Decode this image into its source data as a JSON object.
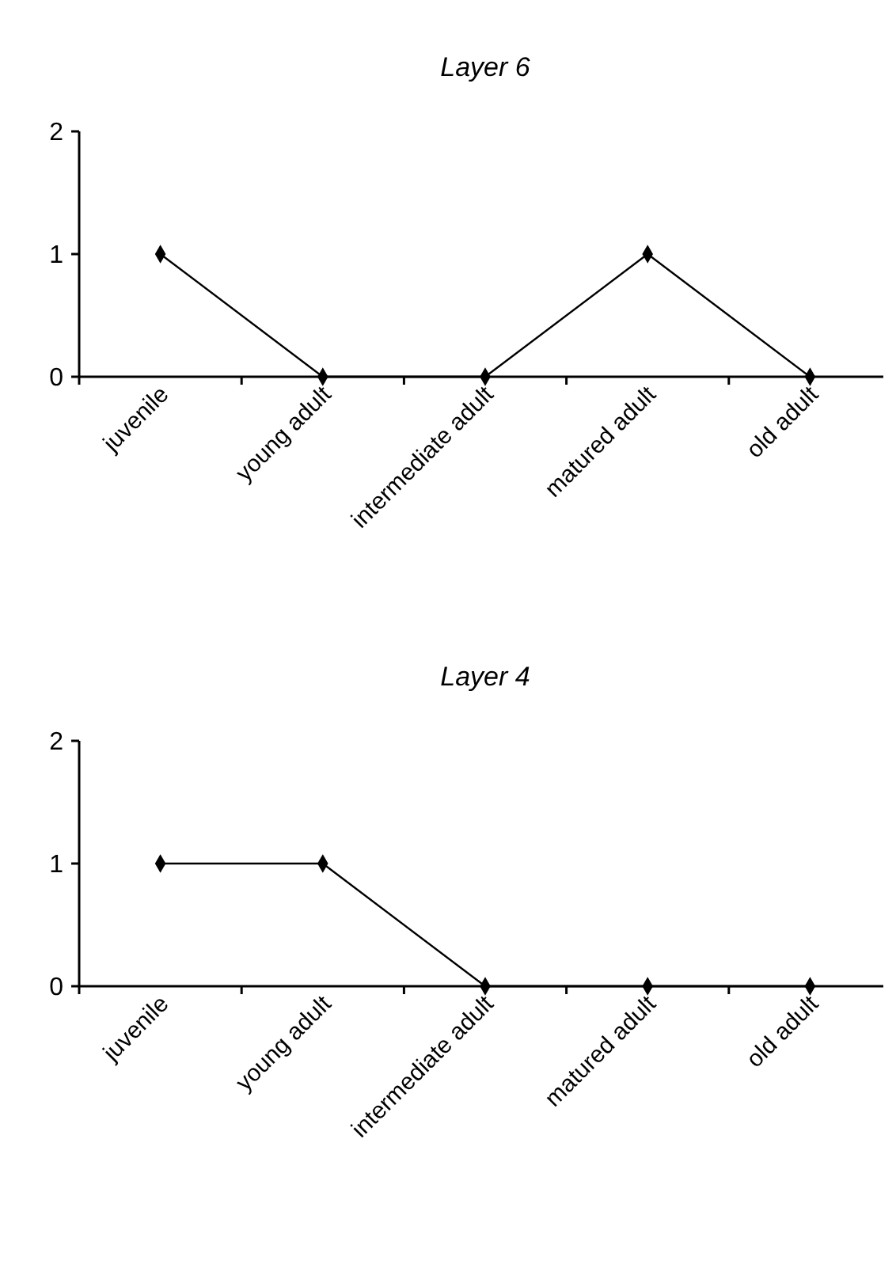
{
  "chart_data": [
    {
      "type": "line",
      "title": "Layer 6",
      "categories": [
        "juvenile",
        "young adult",
        "intermediate adult",
        "matured adult",
        "old adult"
      ],
      "values": [
        1,
        0,
        0,
        1,
        0
      ],
      "color": "#000000",
      "ylim": [
        0,
        2
      ],
      "yticks": [
        0,
        1,
        2
      ],
      "grid": false,
      "marker": "diamond",
      "line_style": "solid"
    },
    {
      "type": "line",
      "title": "Layer 4",
      "categories": [
        "juvenile",
        "young adult",
        "intermediate adult",
        "matured adult",
        "old adult"
      ],
      "values": [
        1,
        1,
        0,
        0,
        0
      ],
      "color": "#000000",
      "ylim": [
        0,
        2
      ],
      "yticks": [
        0,
        1,
        2
      ],
      "grid": false,
      "marker": "diamond",
      "line_style": "solid"
    }
  ]
}
